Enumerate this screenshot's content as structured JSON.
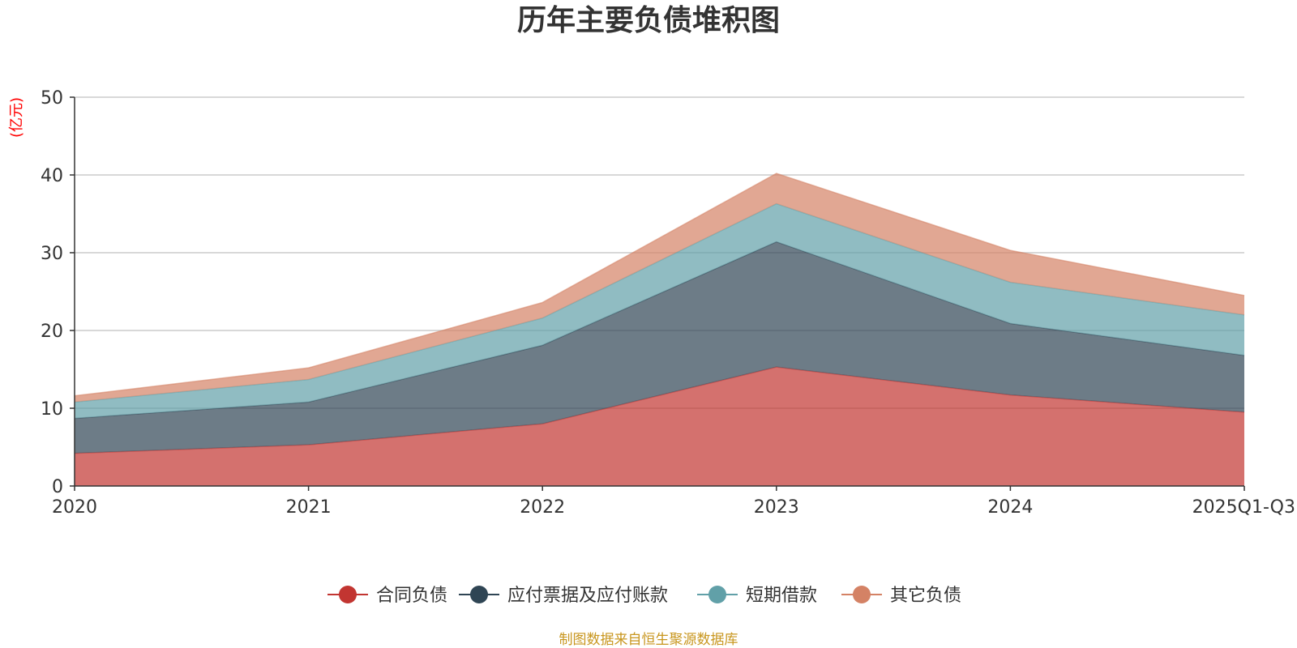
{
  "chart_data": {
    "type": "area",
    "stacked": true,
    "title": "历年主要负债堆积图",
    "ylabel": "(亿元)",
    "xlabel": "",
    "categories": [
      "2020",
      "2021",
      "2022",
      "2023",
      "2024",
      "2025Q1-Q3"
    ],
    "ylim": [
      0,
      50
    ],
    "yticks": [
      0,
      10,
      20,
      30,
      40,
      50
    ],
    "grid": true,
    "legend_position": "bottom",
    "series": [
      {
        "name": "合同负债",
        "color": "#c23531",
        "values": [
          4.2,
          5.3,
          8.0,
          15.3,
          11.7,
          9.5
        ]
      },
      {
        "name": "应付票据及应付账款",
        "color": "#2f4554",
        "values": [
          4.5,
          5.5,
          10.1,
          16.1,
          9.2,
          7.3
        ]
      },
      {
        "name": "短期借款",
        "color": "#61a0a8",
        "values": [
          2.1,
          2.9,
          3.5,
          4.9,
          5.3,
          5.2
        ]
      },
      {
        "name": "其它负债",
        "color": "#d48265",
        "values": [
          0.8,
          1.5,
          2.0,
          3.9,
          4.1,
          2.5
        ]
      }
    ],
    "source": "制图数据来自恒生聚源数据库"
  },
  "colors": {
    "unit_label": "#ff0000",
    "source_text": "#c8961e",
    "grid": "#cccccc",
    "axis": "#333333"
  }
}
